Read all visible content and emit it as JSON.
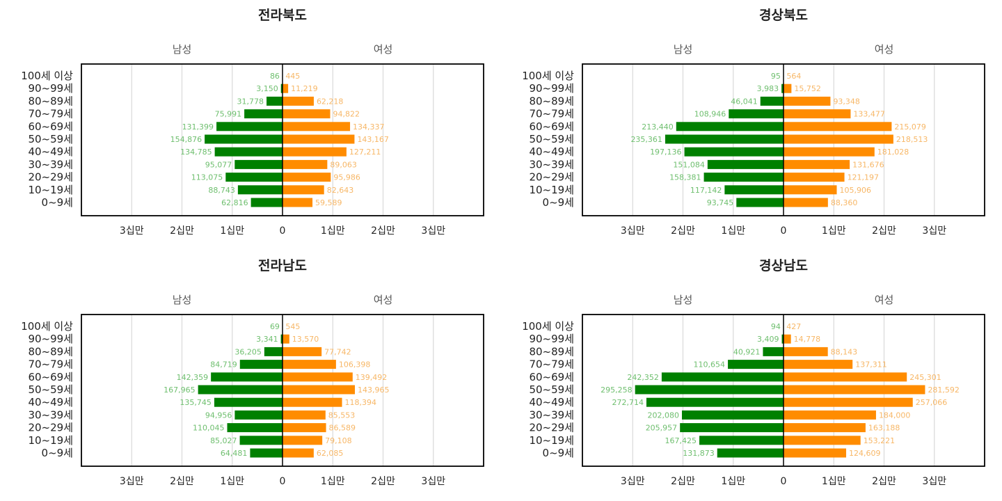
{
  "colors": {
    "male": "#008000",
    "female": "#ff8c00",
    "male_label": "#6fbf6f",
    "female_label": "#f7b767",
    "grid": "#d9d9d9",
    "frame": "#000000"
  },
  "chart_data": [
    {
      "type": "bar",
      "orientation": "horizontal-population-pyramid",
      "title": "전라북도",
      "left_label": "남성",
      "right_label": "여성",
      "categories": [
        "100세 이상",
        "90~99세",
        "80~89세",
        "70~79세",
        "60~69세",
        "50~59세",
        "40~49세",
        "30~39세",
        "20~29세",
        "10~19세",
        "0~9세"
      ],
      "series": [
        {
          "name": "남성",
          "values": [
            86,
            3150,
            31778,
            75991,
            131399,
            154876,
            134785,
            95077,
            113075,
            88743,
            62816
          ],
          "labels": [
            "86",
            "3,150",
            "31,778",
            "75,991",
            "131,399",
            "154,876",
            "134,785",
            "95,077",
            "113,075",
            "88,743",
            "62,816"
          ]
        },
        {
          "name": "여성",
          "values": [
            445,
            11219,
            62218,
            94822,
            134337,
            143167,
            127211,
            89063,
            95986,
            82643,
            59589
          ],
          "labels": [
            "445",
            "11,219",
            "62,218",
            "94,822",
            "134,337",
            "143,167",
            "127,211",
            "89,063",
            "95,986",
            "82,643",
            "59,589"
          ]
        }
      ],
      "xlim": [
        -400000,
        400000
      ],
      "ticks": [
        -300000,
        -200000,
        -100000,
        0,
        100000,
        200000,
        300000
      ],
      "tick_labels": [
        "3십만",
        "2십만",
        "1십만",
        "0",
        "1십만",
        "2십만",
        "3십만"
      ],
      "grid": true
    },
    {
      "type": "bar",
      "orientation": "horizontal-population-pyramid",
      "title": "경상북도",
      "left_label": "남성",
      "right_label": "여성",
      "categories": [
        "100세 이상",
        "90~99세",
        "80~89세",
        "70~79세",
        "60~69세",
        "50~59세",
        "40~49세",
        "30~39세",
        "20~29세",
        "10~19세",
        "0~9세"
      ],
      "series": [
        {
          "name": "남성",
          "values": [
            95,
            3983,
            46041,
            108946,
            213440,
            235361,
            197136,
            151084,
            158381,
            117142,
            93745
          ],
          "labels": [
            "95",
            "3,983",
            "46,041",
            "108,946",
            "213,440",
            "235,361",
            "197,136",
            "151,084",
            "158,381",
            "117,142",
            "93,745"
          ]
        },
        {
          "name": "여성",
          "values": [
            564,
            15752,
            93348,
            133477,
            215079,
            218513,
            181028,
            131676,
            121197,
            105906,
            88360
          ],
          "labels": [
            "564",
            "15,752",
            "93,348",
            "133,477",
            "215,079",
            "218,513",
            "181,028",
            "131,676",
            "121,197",
            "105,906",
            "88,360"
          ]
        }
      ],
      "xlim": [
        -400000,
        400000
      ],
      "ticks": [
        -300000,
        -200000,
        -100000,
        0,
        100000,
        200000,
        300000
      ],
      "tick_labels": [
        "3십만",
        "2십만",
        "1십만",
        "0",
        "1십만",
        "2십만",
        "3십만"
      ],
      "grid": true
    },
    {
      "type": "bar",
      "orientation": "horizontal-population-pyramid",
      "title": "전라남도",
      "left_label": "남성",
      "right_label": "여성",
      "categories": [
        "100세 이상",
        "90~99세",
        "80~89세",
        "70~79세",
        "60~69세",
        "50~59세",
        "40~49세",
        "30~39세",
        "20~29세",
        "10~19세",
        "0~9세"
      ],
      "series": [
        {
          "name": "남성",
          "values": [
            69,
            3341,
            36205,
            84719,
            142359,
            167965,
            135745,
            94956,
            110045,
            85027,
            64481
          ],
          "labels": [
            "69",
            "3,341",
            "36,205",
            "84,719",
            "142,359",
            "167,965",
            "135,745",
            "94,956",
            "110,045",
            "85,027",
            "64,481"
          ]
        },
        {
          "name": "여성",
          "values": [
            545,
            13570,
            77742,
            106398,
            139492,
            143965,
            118394,
            85553,
            86589,
            79108,
            62085
          ],
          "labels": [
            "545",
            "13,570",
            "77,742",
            "106,398",
            "139,492",
            "143,965",
            "118,394",
            "85,553",
            "86,589",
            "79,108",
            "62,085"
          ]
        }
      ],
      "xlim": [
        -400000,
        400000
      ],
      "ticks": [
        -300000,
        -200000,
        -100000,
        0,
        100000,
        200000,
        300000
      ],
      "tick_labels": [
        "3십만",
        "2십만",
        "1십만",
        "0",
        "1십만",
        "2십만",
        "3십만"
      ],
      "grid": true
    },
    {
      "type": "bar",
      "orientation": "horizontal-population-pyramid",
      "title": "경상남도",
      "left_label": "남성",
      "right_label": "여성",
      "categories": [
        "100세 이상",
        "90~99세",
        "80~89세",
        "70~79세",
        "60~69세",
        "50~59세",
        "40~49세",
        "30~39세",
        "20~29세",
        "10~19세",
        "0~9세"
      ],
      "series": [
        {
          "name": "남성",
          "values": [
            94,
            3409,
            40921,
            110654,
            242352,
            295258,
            272714,
            202080,
            205957,
            167425,
            131873
          ],
          "labels": [
            "94",
            "3,409",
            "40,921",
            "110,654",
            "242,352",
            "295,258",
            "272,714",
            "202,080",
            "205,957",
            "167,425",
            "131,873"
          ]
        },
        {
          "name": "여성",
          "values": [
            427,
            14778,
            88143,
            137311,
            245301,
            281592,
            257066,
            184000,
            163188,
            153221,
            124609
          ],
          "labels": [
            "427",
            "14,778",
            "88,143",
            "137,311",
            "245,301",
            "281,592",
            "257,066",
            "184,000",
            "163,188",
            "153,221",
            "124,609"
          ]
        }
      ],
      "xlim": [
        -400000,
        400000
      ],
      "ticks": [
        -300000,
        -200000,
        -100000,
        0,
        100000,
        200000,
        300000
      ],
      "tick_labels": [
        "3십만",
        "2십만",
        "1십만",
        "0",
        "1십만",
        "2십만",
        "3십만"
      ],
      "grid": true
    }
  ]
}
